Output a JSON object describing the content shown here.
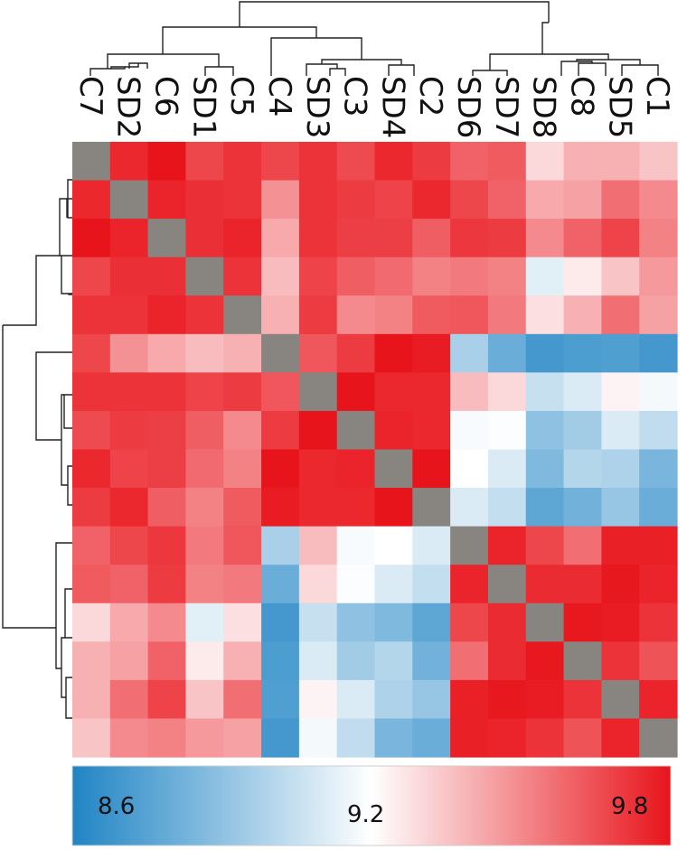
{
  "chart_data": {
    "type": "heatmap",
    "title": "",
    "labels": [
      "C7",
      "SD2",
      "C6",
      "SD1",
      "C5",
      "C4",
      "SD3",
      "C3",
      "SD4",
      "C2",
      "SD6",
      "SD7",
      "SD8",
      "C8",
      "SD5",
      "C1"
    ],
    "diagonal": "missing",
    "colorbar": {
      "min": 8.6,
      "mid": 9.2,
      "max": 9.8,
      "tick_labels": [
        "8.6",
        "9.2",
        "9.8"
      ],
      "colors": {
        "low": "#1f84c4",
        "mid": "#ffffff",
        "high": "#e8141b",
        "missing": "#888580"
      }
    },
    "values": [
      [
        null,
        9.75,
        9.8,
        9.67,
        9.72,
        9.67,
        9.72,
        9.66,
        9.75,
        9.7,
        9.6,
        9.62,
        9.3,
        9.4,
        9.4,
        9.35
      ],
      [
        9.75,
        null,
        9.76,
        9.73,
        9.72,
        9.48,
        9.72,
        9.7,
        9.68,
        9.75,
        9.67,
        9.6,
        9.42,
        9.44,
        9.57,
        9.5
      ],
      [
        9.8,
        9.76,
        null,
        9.73,
        9.76,
        9.42,
        9.72,
        9.69,
        9.69,
        9.61,
        9.71,
        9.7,
        9.5,
        9.6,
        9.68,
        9.52
      ],
      [
        9.67,
        9.73,
        9.73,
        null,
        9.72,
        9.37,
        9.68,
        9.61,
        9.58,
        9.52,
        9.54,
        9.52,
        9.12,
        9.25,
        9.35,
        9.46
      ],
      [
        9.72,
        9.72,
        9.76,
        9.72,
        null,
        9.4,
        9.7,
        9.5,
        9.52,
        9.62,
        9.63,
        9.54,
        9.28,
        9.4,
        9.57,
        9.44
      ],
      [
        9.67,
        9.48,
        9.42,
        9.37,
        9.4,
        null,
        9.63,
        9.7,
        9.8,
        9.78,
        8.97,
        8.8,
        8.7,
        8.72,
        8.73,
        8.7
      ],
      [
        9.72,
        9.72,
        9.72,
        9.68,
        9.7,
        9.63,
        null,
        9.8,
        9.75,
        9.75,
        9.37,
        9.3,
        9.05,
        9.1,
        9.23,
        9.17
      ],
      [
        9.66,
        9.7,
        9.69,
        9.61,
        9.5,
        9.7,
        9.8,
        null,
        9.76,
        9.75,
        9.18,
        9.19,
        8.9,
        8.95,
        9.1,
        9.03
      ],
      [
        9.75,
        9.68,
        9.69,
        9.58,
        9.52,
        9.8,
        9.75,
        9.76,
        null,
        9.8,
        9.2,
        9.1,
        8.86,
        9.0,
        8.98,
        8.84
      ],
      [
        9.7,
        9.75,
        9.61,
        9.52,
        9.62,
        9.78,
        9.75,
        9.75,
        9.8,
        null,
        9.1,
        9.04,
        8.77,
        8.82,
        8.92,
        8.8
      ],
      [
        9.6,
        9.67,
        9.71,
        9.54,
        9.63,
        8.97,
        9.37,
        9.18,
        9.2,
        9.1,
        null,
        9.76,
        9.67,
        9.57,
        9.77,
        9.77
      ],
      [
        9.62,
        9.6,
        9.7,
        9.52,
        9.54,
        8.8,
        9.3,
        9.19,
        9.1,
        9.04,
        9.76,
        null,
        9.74,
        9.74,
        9.79,
        9.76
      ],
      [
        9.3,
        9.42,
        9.5,
        9.12,
        9.28,
        8.7,
        9.05,
        8.9,
        8.86,
        8.77,
        9.67,
        9.74,
        null,
        9.79,
        9.78,
        9.72
      ],
      [
        9.4,
        9.44,
        9.6,
        9.25,
        9.4,
        8.72,
        9.1,
        8.95,
        9.0,
        8.82,
        9.57,
        9.74,
        9.79,
        null,
        9.72,
        9.64
      ],
      [
        9.4,
        9.57,
        9.68,
        9.35,
        9.57,
        8.73,
        9.23,
        9.1,
        8.98,
        8.92,
        9.77,
        9.79,
        9.78,
        9.72,
        null,
        9.76
      ],
      [
        9.35,
        9.5,
        9.52,
        9.46,
        9.44,
        8.7,
        9.17,
        9.03,
        8.84,
        8.8,
        9.77,
        9.76,
        9.72,
        9.64,
        9.76,
        null
      ]
    ]
  }
}
